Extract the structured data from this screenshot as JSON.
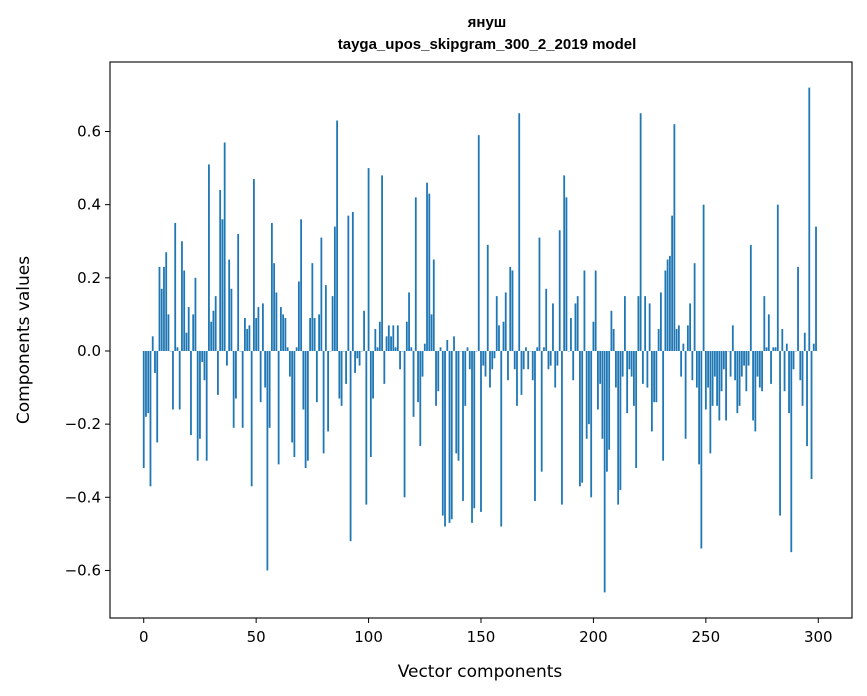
{
  "chart_data": {
    "type": "bar",
    "title": "януш",
    "subtitle": "tayga_upos_skipgram_300_2_2019 model",
    "xlabel": "Vector components",
    "ylabel": "Components values",
    "xlim": [
      -15,
      315
    ],
    "ylim": [
      -0.73,
      0.79
    ],
    "xticks": [
      0,
      50,
      100,
      150,
      200,
      250,
      300
    ],
    "xtick_labels": [
      "0",
      "50",
      "100",
      "150",
      "200",
      "250",
      "300"
    ],
    "yticks": [
      -0.6,
      -0.4,
      -0.2,
      0.0,
      0.2,
      0.4,
      0.6
    ],
    "ytick_labels": [
      "−0.6",
      "−0.4",
      "−0.2",
      "0.0",
      "0.2",
      "0.4",
      "0.6"
    ],
    "bar_color": "#1f77b4",
    "x": "component indices 0..299",
    "values": [
      -0.32,
      -0.18,
      -0.17,
      -0.37,
      0.04,
      -0.06,
      -0.25,
      0.23,
      0.17,
      0.23,
      0.27,
      0.1,
      0.0,
      -0.16,
      0.35,
      0.01,
      -0.16,
      0.3,
      0.22,
      0.05,
      0.12,
      -0.23,
      0.1,
      0.2,
      -0.3,
      -0.24,
      -0.03,
      -0.08,
      -0.3,
      0.51,
      0.08,
      0.11,
      0.15,
      -0.12,
      0.44,
      0.36,
      0.57,
      -0.04,
      0.25,
      0.17,
      -0.21,
      -0.13,
      0.32,
      0.0,
      -0.21,
      0.09,
      0.06,
      0.07,
      -0.37,
      0.47,
      0.09,
      0.12,
      -0.14,
      0.13,
      -0.1,
      -0.6,
      -0.21,
      0.35,
      0.24,
      0.16,
      -0.31,
      0.12,
      0.1,
      0.09,
      0.01,
      -0.07,
      -0.25,
      -0.29,
      0.01,
      0.19,
      0.36,
      -0.16,
      -0.32,
      -0.3,
      0.09,
      0.24,
      0.09,
      -0.14,
      0.1,
      0.31,
      -0.28,
      0.18,
      -0.22,
      0.0,
      0.15,
      0.34,
      0.63,
      -0.13,
      -0.15,
      0.0,
      -0.09,
      0.37,
      -0.52,
      0.38,
      -0.06,
      -0.02,
      -0.04,
      0.0,
      0.11,
      -0.42,
      0.5,
      -0.29,
      -0.13,
      0.06,
      0.01,
      0.08,
      0.48,
      -0.09,
      0.04,
      0.07,
      0.04,
      0.07,
      0.01,
      0.07,
      -0.05,
      0.0,
      -0.4,
      0.08,
      0.16,
      0.01,
      -0.18,
      0.42,
      -0.14,
      -0.26,
      -0.07,
      0.02,
      0.46,
      0.43,
      0.1,
      0.25,
      -0.15,
      -0.11,
      0.01,
      -0.45,
      -0.48,
      0.03,
      -0.47,
      -0.46,
      0.04,
      -0.28,
      -0.3,
      0.0,
      -0.41,
      -0.15,
      0.01,
      -0.05,
      -0.47,
      -0.43,
      0.0,
      0.59,
      -0.44,
      -0.04,
      -0.07,
      0.29,
      -0.1,
      -0.05,
      -0.02,
      0.15,
      0.07,
      -0.48,
      0.08,
      0.16,
      -0.08,
      0.23,
      0.22,
      -0.05,
      -0.15,
      0.65,
      -0.12,
      -0.05,
      0.01,
      -0.05,
      0.0,
      -0.08,
      -0.41,
      0.01,
      0.31,
      -0.33,
      0.01,
      0.17,
      -0.05,
      -0.04,
      0.13,
      -0.1,
      -0.04,
      0.33,
      -0.42,
      0.48,
      0.42,
      0.0,
      0.09,
      -0.08,
      0.13,
      0.15,
      -0.37,
      -0.36,
      0.22,
      -0.24,
      -0.2,
      -0.4,
      0.08,
      0.22,
      -0.16,
      -0.09,
      -0.24,
      -0.66,
      -0.33,
      -0.27,
      0.11,
      0.06,
      -0.1,
      -0.42,
      -0.38,
      -0.07,
      0.15,
      -0.17,
      -0.05,
      -0.07,
      -0.15,
      -0.32,
      0.15,
      0.65,
      -0.09,
      0.15,
      -0.1,
      0.13,
      -0.22,
      -0.14,
      -0.14,
      0.06,
      0.16,
      -0.3,
      0.22,
      0.25,
      0.26,
      0.37,
      0.62,
      0.06,
      0.07,
      -0.07,
      0.02,
      -0.24,
      0.07,
      0.13,
      -0.08,
      0.24,
      -0.1,
      -0.31,
      -0.54,
      0.4,
      -0.16,
      -0.1,
      -0.28,
      -0.15,
      -0.07,
      -0.15,
      -0.19,
      -0.11,
      -0.05,
      -0.19,
      0.0,
      -0.07,
      0.07,
      -0.08,
      -0.17,
      -0.15,
      -0.07,
      -0.04,
      -0.11,
      -0.04,
      0.29,
      -0.19,
      -0.22,
      -0.07,
      -0.1,
      -0.11,
      0.15,
      0.01,
      0.1,
      -0.09,
      0.01,
      0.01,
      0.4,
      -0.45,
      0.06,
      -0.11,
      0.02,
      -0.17,
      -0.55,
      -0.05,
      0.0,
      0.23,
      -0.08,
      -0.15,
      0.05,
      -0.26,
      0.72,
      -0.35,
      0.02,
      0.34
    ]
  }
}
